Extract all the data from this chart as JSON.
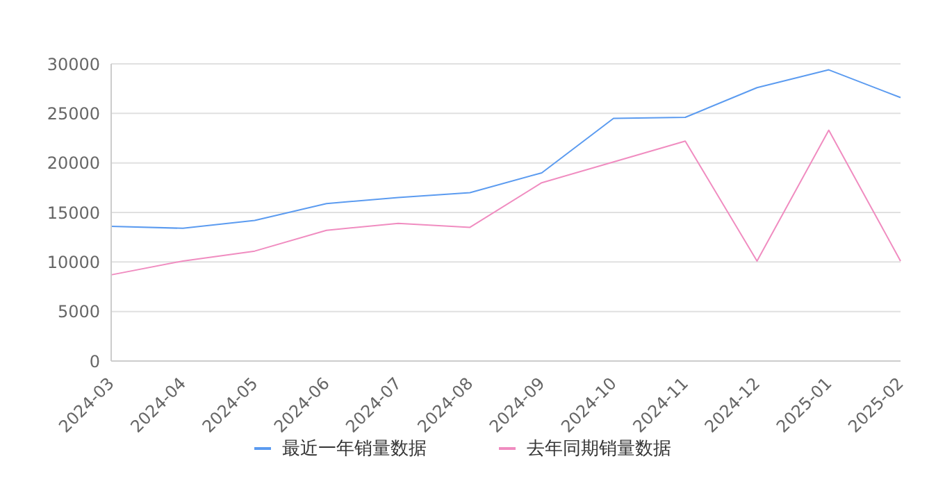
{
  "chart_data": {
    "type": "line",
    "categories": [
      "2024-03",
      "2024-04",
      "2024-05",
      "2024-06",
      "2024-07",
      "2024-08",
      "2024-09",
      "2024-10",
      "2024-11",
      "2024-12",
      "2025-01",
      "2025-02"
    ],
    "series": [
      {
        "name": "最近一年销量数据",
        "color": "#5b9bf0",
        "values": [
          13600,
          13400,
          14200,
          15900,
          16500,
          17000,
          19000,
          24500,
          24600,
          27600,
          29400,
          26600
        ]
      },
      {
        "name": "去年同期销量数据",
        "color": "#f08cc0",
        "values": [
          8700,
          10100,
          11100,
          13200,
          13900,
          13500,
          18000,
          20100,
          22200,
          10100,
          23300,
          10100
        ]
      }
    ],
    "ylim": [
      0,
      30000
    ],
    "yticks": [
      0,
      5000,
      10000,
      15000,
      20000,
      25000,
      30000
    ],
    "grid": "y",
    "legend": "bottom",
    "marker": "none"
  }
}
